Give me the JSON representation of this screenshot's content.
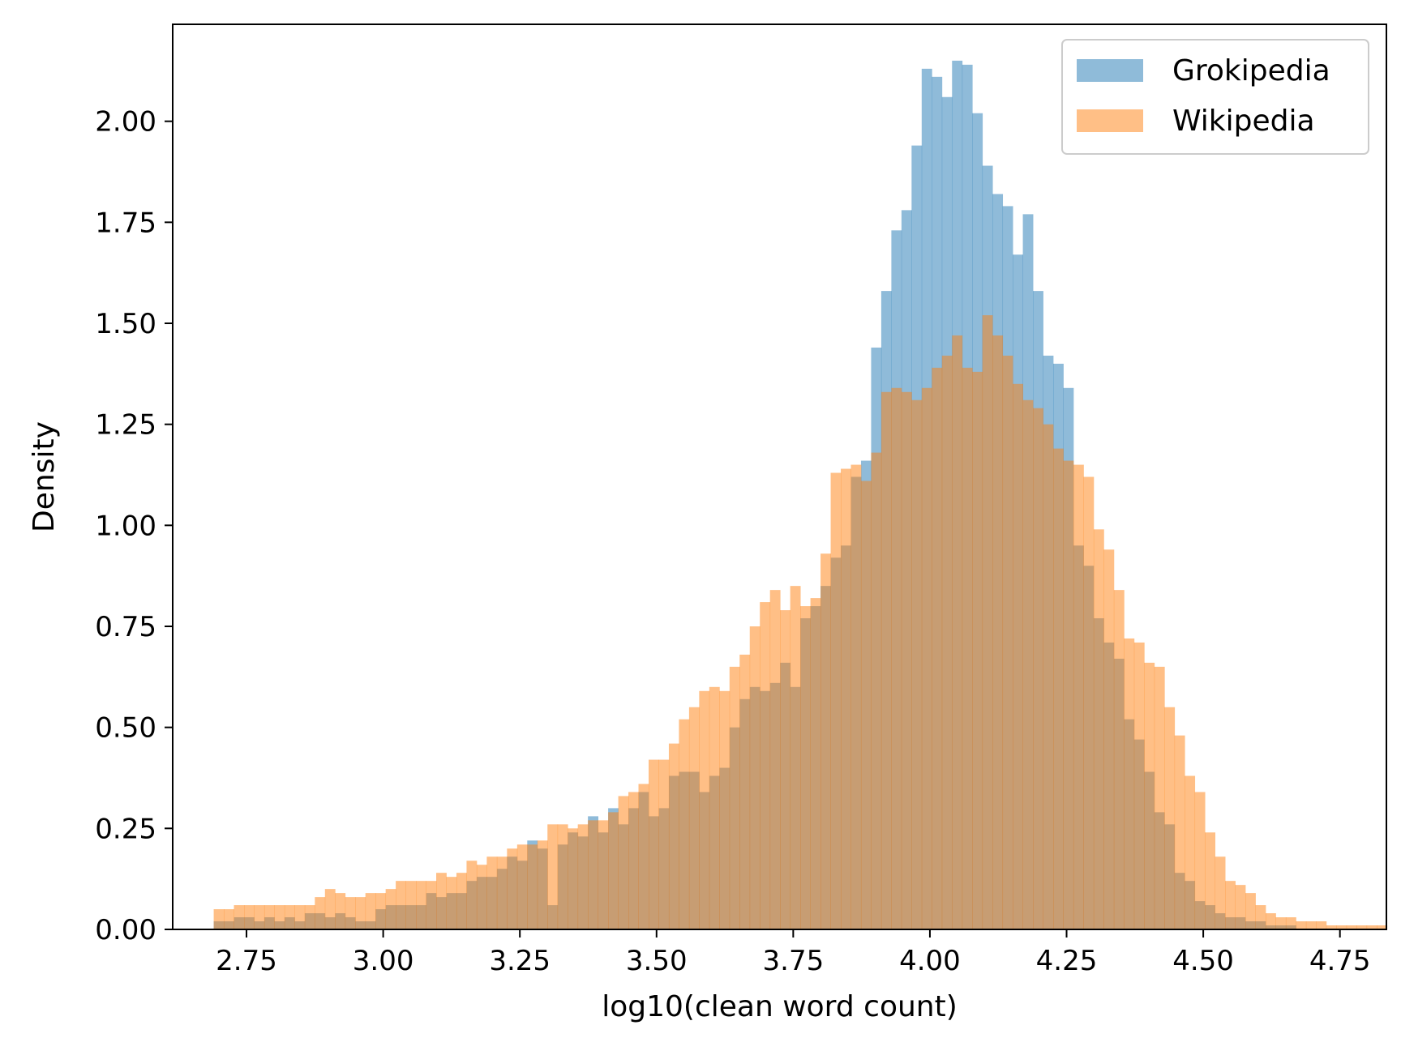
{
  "chart_data": {
    "type": "histogram",
    "xlabel": "log10(clean word count)",
    "ylabel": "Density",
    "xlim": [
      2.615,
      4.835
    ],
    "ylim": [
      0,
      2.24
    ],
    "xticks": [
      "2.75",
      "3.00",
      "3.25",
      "3.50",
      "3.75",
      "4.00",
      "4.25",
      "4.50",
      "4.75"
    ],
    "yticks": [
      "0.00",
      "0.25",
      "0.50",
      "0.75",
      "1.00",
      "1.25",
      "1.50",
      "1.75",
      "2.00"
    ],
    "grid": false,
    "legend_position": "upper right",
    "bins": {
      "start": 2.69,
      "width": 0.0185
    },
    "series": [
      {
        "name": "Grokipedia",
        "color": "#1f77b4",
        "alpha": 0.5,
        "values": [
          0.02,
          0.02,
          0.03,
          0.03,
          0.02,
          0.03,
          0.02,
          0.03,
          0.02,
          0.04,
          0.04,
          0.03,
          0.04,
          0.03,
          0.02,
          0.02,
          0.05,
          0.06,
          0.06,
          0.06,
          0.06,
          0.09,
          0.08,
          0.09,
          0.09,
          0.12,
          0.13,
          0.13,
          0.15,
          0.18,
          0.17,
          0.22,
          0.2,
          0.06,
          0.21,
          0.24,
          0.23,
          0.28,
          0.24,
          0.3,
          0.26,
          0.3,
          0.34,
          0.28,
          0.3,
          0.38,
          0.39,
          0.39,
          0.34,
          0.38,
          0.4,
          0.5,
          0.57,
          0.6,
          0.59,
          0.61,
          0.66,
          0.6,
          0.77,
          0.8,
          0.85,
          0.92,
          0.95,
          1.12,
          1.16,
          1.44,
          1.58,
          1.73,
          1.78,
          1.94,
          2.13,
          2.11,
          2.06,
          2.15,
          2.14,
          2.02,
          1.89,
          1.82,
          1.79,
          1.67,
          1.77,
          1.58,
          1.42,
          1.4,
          1.34,
          0.95,
          0.9,
          0.77,
          0.71,
          0.67,
          0.52,
          0.47,
          0.39,
          0.29,
          0.26,
          0.14,
          0.12,
          0.07,
          0.06,
          0.04,
          0.03,
          0.03,
          0.02,
          0.02,
          0.01,
          0.01,
          0.01,
          0.0,
          0.0,
          0.0,
          0.0,
          0.0,
          0.0,
          0.0,
          0.0,
          0.0,
          0.0
        ]
      },
      {
        "name": "Wikipedia",
        "color": "#ff7f0e",
        "alpha": 0.5,
        "values": [
          0.05,
          0.05,
          0.06,
          0.06,
          0.06,
          0.06,
          0.06,
          0.06,
          0.06,
          0.06,
          0.08,
          0.1,
          0.09,
          0.08,
          0.08,
          0.09,
          0.09,
          0.1,
          0.12,
          0.12,
          0.12,
          0.12,
          0.14,
          0.13,
          0.14,
          0.17,
          0.16,
          0.18,
          0.18,
          0.2,
          0.21,
          0.21,
          0.22,
          0.26,
          0.26,
          0.25,
          0.26,
          0.27,
          0.27,
          0.29,
          0.33,
          0.34,
          0.36,
          0.42,
          0.42,
          0.46,
          0.52,
          0.55,
          0.59,
          0.6,
          0.59,
          0.65,
          0.68,
          0.75,
          0.81,
          0.84,
          0.79,
          0.85,
          0.8,
          0.82,
          0.93,
          1.13,
          1.14,
          1.15,
          1.11,
          1.18,
          1.33,
          1.34,
          1.33,
          1.31,
          1.34,
          1.39,
          1.42,
          1.47,
          1.39,
          1.38,
          1.52,
          1.47,
          1.42,
          1.35,
          1.31,
          1.29,
          1.25,
          1.19,
          1.16,
          1.15,
          1.12,
          0.99,
          0.94,
          0.84,
          0.72,
          0.71,
          0.66,
          0.65,
          0.55,
          0.48,
          0.38,
          0.34,
          0.24,
          0.18,
          0.12,
          0.11,
          0.09,
          0.06,
          0.04,
          0.03,
          0.03,
          0.02,
          0.02,
          0.02,
          0.01,
          0.01,
          0.01,
          0.01,
          0.01,
          0.01,
          0.0,
          0.0,
          0.0,
          0.0,
          0.01
        ]
      }
    ]
  }
}
